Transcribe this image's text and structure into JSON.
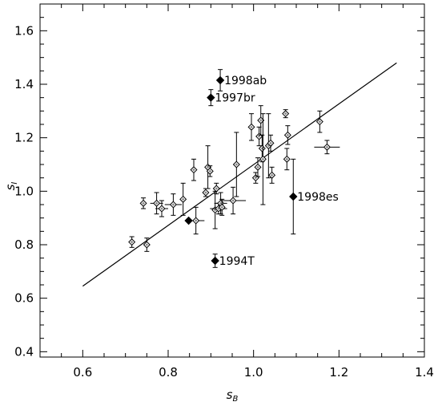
{
  "chart_data": {
    "type": "scatter",
    "title": "",
    "xlabel_main": "s",
    "xlabel_sub": "B",
    "ylabel_main": "s",
    "ylabel_sub": "I",
    "xlim": [
      0.5,
      1.4
    ],
    "ylim": [
      0.38,
      1.7
    ],
    "x_ticks": [
      0.6,
      0.8,
      1.0,
      1.2,
      1.4
    ],
    "x_tick_labels": [
      "0.6",
      "0.8",
      "1.0",
      "1.2",
      "1.4"
    ],
    "x_minor_ticks": [
      0.55,
      0.6,
      0.65,
      0.7,
      0.75,
      0.8,
      0.85,
      0.9,
      0.95,
      1.0,
      1.05,
      1.1,
      1.15,
      1.2,
      1.25,
      1.3,
      1.35,
      1.4
    ],
    "y_ticks": [
      0.4,
      0.6,
      0.8,
      1.0,
      1.2,
      1.4,
      1.6
    ],
    "y_tick_labels": [
      "0.4",
      "0.6",
      "0.8",
      "1.0",
      "1.2",
      "1.4",
      "1.6"
    ],
    "y_minor_ticks": [
      0.4,
      0.45,
      0.5,
      0.55,
      0.6,
      0.65,
      0.7,
      0.75,
      0.8,
      0.85,
      0.9,
      0.95,
      1.0,
      1.05,
      1.1,
      1.15,
      1.2,
      1.25,
      1.3,
      1.35,
      1.4,
      1.45,
      1.5,
      1.55,
      1.6,
      1.65
    ],
    "grid": false,
    "fit_line": {
      "x": [
        0.6,
        1.335
      ],
      "y": [
        0.645,
        1.48
      ]
    },
    "series": [
      {
        "marker": "open-diamond",
        "points": [
          {
            "x": 0.715,
            "y": 0.81,
            "xerr": 0.0,
            "yerr": 0.02
          },
          {
            "x": 0.742,
            "y": 0.955,
            "xerr": 0.0,
            "yerr": 0.02
          },
          {
            "x": 0.75,
            "y": 0.8,
            "xerr": 0.0,
            "yerr": 0.025
          },
          {
            "x": 0.773,
            "y": 0.955,
            "xerr": 0.015,
            "yerr": 0.04
          },
          {
            "x": 0.785,
            "y": 0.935,
            "xerr": 0.015,
            "yerr": 0.03
          },
          {
            "x": 0.812,
            "y": 0.95,
            "xerr": 0.02,
            "yerr": 0.04
          },
          {
            "x": 0.835,
            "y": 0.97,
            "xerr": 0.0,
            "yerr": 0.06
          },
          {
            "x": 0.86,
            "y": 1.08,
            "xerr": 0.0,
            "yerr": 0.04
          },
          {
            "x": 0.865,
            "y": 0.89,
            "xerr": 0.02,
            "yerr": 0.05
          },
          {
            "x": 0.888,
            "y": 0.995,
            "xerr": 0.0,
            "yerr": 0.015
          },
          {
            "x": 0.893,
            "y": 1.09,
            "xerr": 0.0,
            "yerr": 0.08
          },
          {
            "x": 0.898,
            "y": 1.075,
            "xerr": 0.0,
            "yerr": 0.02
          },
          {
            "x": 0.91,
            "y": 0.93,
            "xerr": 0.0,
            "yerr": 0.07
          },
          {
            "x": 0.913,
            "y": 1.01,
            "xerr": 0.0,
            "yerr": 0.02
          },
          {
            "x": 0.918,
            "y": 0.935,
            "xerr": 0.02,
            "yerr": 0.02
          },
          {
            "x": 0.923,
            "y": 0.955,
            "xerr": 0.015,
            "yerr": 0.04
          },
          {
            "x": 0.926,
            "y": 0.94,
            "xerr": 0.0,
            "yerr": 0.03
          },
          {
            "x": 0.952,
            "y": 0.965,
            "xerr": 0.03,
            "yerr": 0.05
          },
          {
            "x": 0.96,
            "y": 1.1,
            "xerr": 0.0,
            "yerr": 0.12
          },
          {
            "x": 0.995,
            "y": 1.24,
            "xerr": 0.0,
            "yerr": 0.05
          },
          {
            "x": 1.005,
            "y": 1.05,
            "xerr": 0.0,
            "yerr": 0.02
          },
          {
            "x": 1.01,
            "y": 1.09,
            "xerr": 0.0,
            "yerr": 0.035
          },
          {
            "x": 1.013,
            "y": 1.205,
            "xerr": 0.0,
            "yerr": 0.035
          },
          {
            "x": 1.017,
            "y": 1.265,
            "xerr": 0.0,
            "yerr": 0.055
          },
          {
            "x": 1.02,
            "y": 1.16,
            "xerr": 0.0,
            "yerr": 0.05
          },
          {
            "x": 1.022,
            "y": 1.12,
            "xerr": 0.0,
            "yerr": 0.17
          },
          {
            "x": 1.035,
            "y": 1.17,
            "xerr": 0.0,
            "yerr": 0.12
          },
          {
            "x": 1.04,
            "y": 1.18,
            "xerr": 0.0,
            "yerr": 0.03
          },
          {
            "x": 1.043,
            "y": 1.06,
            "xerr": 0.0,
            "yerr": 0.03
          },
          {
            "x": 1.075,
            "y": 1.29,
            "xerr": 0.0,
            "yerr": 0.015
          },
          {
            "x": 1.08,
            "y": 1.21,
            "xerr": 0.0,
            "yerr": 0.035
          },
          {
            "x": 1.078,
            "y": 1.12,
            "xerr": 0.0,
            "yerr": 0.04
          },
          {
            "x": 1.155,
            "y": 1.26,
            "xerr": 0.0,
            "yerr": 0.04
          },
          {
            "x": 1.172,
            "y": 1.165,
            "xerr": 0.03,
            "yerr": 0.025
          }
        ]
      },
      {
        "marker": "filled-diamond",
        "points": [
          {
            "x": 0.922,
            "y": 1.415,
            "xerr": 0.0,
            "yerr": 0.04,
            "label": "1998ab"
          },
          {
            "x": 0.9,
            "y": 1.35,
            "xerr": 0.0,
            "yerr": 0.03,
            "label": "1997br"
          },
          {
            "x": 1.093,
            "y": 0.98,
            "xerr": 0.0,
            "yerr": 0.14,
            "label": "1998es"
          },
          {
            "x": 0.91,
            "y": 0.74,
            "xerr": 0.0,
            "yerr": 0.025,
            "label": "1994T"
          },
          {
            "x": 0.848,
            "y": 0.89,
            "xerr": 0.0,
            "yerr": 0.0
          }
        ]
      }
    ]
  }
}
